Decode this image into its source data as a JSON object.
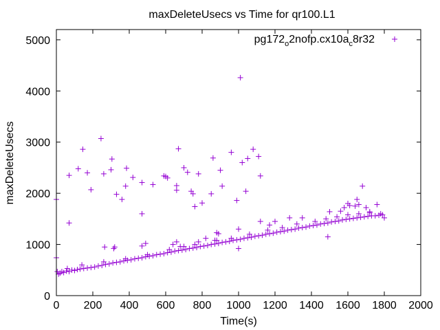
{
  "chart_data": {
    "type": "scatter",
    "title": "maxDeleteUsecs vs Time for qr100.L1",
    "xlabel": "Time(s)",
    "ylabel": "maxDeleteUsecs",
    "xlim": [
      0,
      2000
    ],
    "ylim": [
      0,
      5200
    ],
    "xticks": [
      0,
      200,
      400,
      600,
      800,
      1000,
      1200,
      1400,
      1600,
      1800,
      2000
    ],
    "yticks": [
      0,
      1000,
      2000,
      3000,
      4000,
      5000
    ],
    "grid": false,
    "legend_position": "top-right",
    "series": [
      {
        "name": "pg172_o2nofp.cx10a_c8r32",
        "color": "#9400d3",
        "marker": "+",
        "points": [
          [
            0,
            740
          ],
          [
            0,
            1880
          ],
          [
            5,
            470
          ],
          [
            12,
            420
          ],
          [
            20,
            440
          ],
          [
            30,
            470
          ],
          [
            40,
            450
          ],
          [
            55,
            480
          ],
          [
            70,
            470
          ],
          [
            85,
            500
          ],
          [
            100,
            490
          ],
          [
            115,
            510
          ],
          [
            130,
            520
          ],
          [
            150,
            530
          ],
          [
            170,
            540
          ],
          [
            190,
            550
          ],
          [
            210,
            560
          ],
          [
            230,
            580
          ],
          [
            250,
            590
          ],
          [
            270,
            610
          ],
          [
            290,
            620
          ],
          [
            310,
            640
          ],
          [
            330,
            650
          ],
          [
            350,
            660
          ],
          [
            370,
            680
          ],
          [
            390,
            690
          ],
          [
            410,
            700
          ],
          [
            430,
            720
          ],
          [
            450,
            730
          ],
          [
            470,
            740
          ],
          [
            490,
            760
          ],
          [
            510,
            770
          ],
          [
            530,
            780
          ],
          [
            550,
            800
          ],
          [
            570,
            810
          ],
          [
            590,
            820
          ],
          [
            610,
            840
          ],
          [
            630,
            850
          ],
          [
            650,
            870
          ],
          [
            670,
            880
          ],
          [
            690,
            890
          ],
          [
            710,
            900
          ],
          [
            730,
            920
          ],
          [
            750,
            930
          ],
          [
            770,
            940
          ],
          [
            790,
            960
          ],
          [
            810,
            970
          ],
          [
            830,
            980
          ],
          [
            850,
            1000
          ],
          [
            870,
            1010
          ],
          [
            890,
            1020
          ],
          [
            910,
            1040
          ],
          [
            930,
            1050
          ],
          [
            950,
            1060
          ],
          [
            970,
            1080
          ],
          [
            990,
            1090
          ],
          [
            1010,
            1100
          ],
          [
            1030,
            1120
          ],
          [
            1050,
            1130
          ],
          [
            1070,
            1140
          ],
          [
            1090,
            1160
          ],
          [
            1110,
            1170
          ],
          [
            1130,
            1180
          ],
          [
            1150,
            1200
          ],
          [
            1170,
            1210
          ],
          [
            1190,
            1220
          ],
          [
            1210,
            1240
          ],
          [
            1230,
            1250
          ],
          [
            1250,
            1260
          ],
          [
            1270,
            1280
          ],
          [
            1290,
            1290
          ],
          [
            1310,
            1300
          ],
          [
            1330,
            1320
          ],
          [
            1350,
            1330
          ],
          [
            1370,
            1340
          ],
          [
            1390,
            1360
          ],
          [
            1410,
            1370
          ],
          [
            1430,
            1380
          ],
          [
            1450,
            1400
          ],
          [
            1470,
            1410
          ],
          [
            1490,
            1420
          ],
          [
            1510,
            1440
          ],
          [
            1530,
            1450
          ],
          [
            1550,
            1460
          ],
          [
            1570,
            1480
          ],
          [
            1590,
            1490
          ],
          [
            1610,
            1500
          ],
          [
            1630,
            1510
          ],
          [
            1650,
            1520
          ],
          [
            1670,
            1530
          ],
          [
            1690,
            1540
          ],
          [
            1710,
            1550
          ],
          [
            1730,
            1560
          ],
          [
            1750,
            1560
          ],
          [
            1770,
            1570
          ],
          [
            1790,
            1580
          ],
          [
            1800,
            1520
          ],
          [
            60,
            530
          ],
          [
            140,
            600
          ],
          [
            260,
            660
          ],
          [
            380,
            720
          ],
          [
            500,
            800
          ],
          [
            620,
            900
          ],
          [
            700,
            960
          ],
          [
            760,
            1000
          ],
          [
            880,
            1080
          ],
          [
            960,
            1120
          ],
          [
            1060,
            1200
          ],
          [
            1160,
            1280
          ],
          [
            1240,
            1330
          ],
          [
            1320,
            1400
          ],
          [
            1420,
            1450
          ],
          [
            1480,
            1500
          ],
          [
            1540,
            1540
          ],
          [
            1600,
            1580
          ],
          [
            1660,
            1600
          ],
          [
            1720,
            1620
          ],
          [
            1780,
            1600
          ],
          [
            265,
            950
          ],
          [
            320,
            950
          ],
          [
            315,
            920
          ],
          [
            470,
            970
          ],
          [
            490,
            1020
          ],
          [
            640,
            1000
          ],
          [
            660,
            1050
          ],
          [
            680,
            960
          ],
          [
            780,
            1050
          ],
          [
            820,
            1120
          ],
          [
            870,
            1080
          ],
          [
            1000,
            1300
          ],
          [
            1000,
            920
          ],
          [
            1120,
            1450
          ],
          [
            1170,
            1380
          ],
          [
            1200,
            1450
          ],
          [
            1280,
            1520
          ],
          [
            1350,
            1520
          ],
          [
            1490,
            1150
          ],
          [
            1500,
            1640
          ],
          [
            1560,
            1650
          ],
          [
            1580,
            1720
          ],
          [
            1600,
            1800
          ],
          [
            1610,
            1760
          ],
          [
            1640,
            1750
          ],
          [
            1650,
            1880
          ],
          [
            1660,
            1780
          ],
          [
            1700,
            1720
          ],
          [
            1720,
            1640
          ],
          [
            1760,
            1780
          ],
          [
            70,
            1420
          ],
          [
            70,
            2350
          ],
          [
            120,
            2480
          ],
          [
            145,
            2860
          ],
          [
            170,
            2400
          ],
          [
            190,
            2070
          ],
          [
            245,
            3070
          ],
          [
            260,
            2380
          ],
          [
            300,
            2460
          ],
          [
            305,
            2670
          ],
          [
            330,
            1980
          ],
          [
            360,
            1880
          ],
          [
            380,
            2140
          ],
          [
            385,
            2490
          ],
          [
            420,
            2310
          ],
          [
            470,
            2210
          ],
          [
            470,
            1600
          ],
          [
            530,
            2170
          ],
          [
            590,
            2340
          ],
          [
            600,
            2330
          ],
          [
            610,
            2300
          ],
          [
            660,
            2150
          ],
          [
            660,
            2060
          ],
          [
            670,
            2870
          ],
          [
            700,
            2500
          ],
          [
            720,
            2410
          ],
          [
            740,
            2040
          ],
          [
            750,
            1990
          ],
          [
            760,
            1740
          ],
          [
            780,
            2380
          ],
          [
            800,
            1810
          ],
          [
            850,
            1990
          ],
          [
            860,
            2690
          ],
          [
            880,
            1230
          ],
          [
            890,
            1210
          ],
          [
            900,
            2450
          ],
          [
            910,
            2140
          ],
          [
            960,
            2800
          ],
          [
            990,
            1860
          ],
          [
            1010,
            4260
          ],
          [
            1020,
            2600
          ],
          [
            1040,
            2040
          ],
          [
            1050,
            2680
          ],
          [
            1080,
            2860
          ],
          [
            1110,
            2720
          ],
          [
            1120,
            2340
          ],
          [
            1680,
            2140
          ]
        ]
      }
    ]
  }
}
